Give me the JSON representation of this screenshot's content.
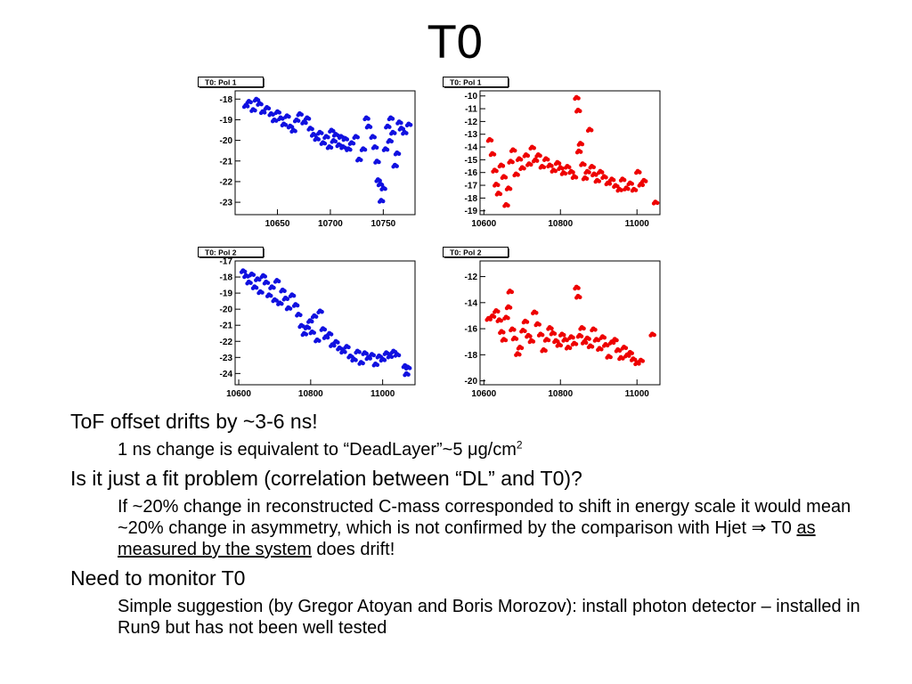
{
  "title": "T0",
  "bullets": {
    "b1": "ToF offset drifts by ~3-6 ns!",
    "b1_sub_a": "1 ns change is equivalent to “DeadLayer”~5 ",
    "b1_sub_mu": "μ",
    "b1_sub_b": "g/cm",
    "b1_sub_sup": "2",
    "b2": "Is it just a fit problem (correlation between “DL” and T0)?",
    "b2_sub_a": "If ~20% change in reconstructed C-mass corresponded to shift in energy scale it would mean ~20% change in asymmetry, which is not confirmed by the comparison with Hjet ",
    "b2_sub_arrow": "⇒",
    "b2_sub_b": " T0 ",
    "b2_sub_link": "as measured by the system",
    "b2_sub_c": " does drift!",
    "b3": "Need to monitor T0",
    "b3_sub": "Simple suggestion (by Gregor Atoyan and Boris Morozov): install photon detector – installed in Run9 but has not been well tested"
  },
  "chart_data": [
    {
      "type": "scatter",
      "title": "T0: Pol 1",
      "color": "#1010e0",
      "xlim": [
        10610,
        10780
      ],
      "ylim": [
        -23.6,
        -17.6
      ],
      "xticks": [
        10650,
        10700,
        10750
      ],
      "xtick_labels": [
        "10650",
        "10700",
        "10750"
      ],
      "yticks": [
        -18,
        -19,
        -20,
        -21,
        -22,
        -23
      ],
      "ytick_labels": [
        "-18",
        "-19",
        "-20",
        "-21",
        "-22",
        "-23"
      ],
      "points": [
        [
          10620,
          -18.3
        ],
        [
          10623,
          -18.1
        ],
        [
          10627,
          -18.5
        ],
        [
          10630,
          -18.0
        ],
        [
          10633,
          -18.2
        ],
        [
          10636,
          -18.6
        ],
        [
          10640,
          -18.4
        ],
        [
          10644,
          -18.7
        ],
        [
          10647,
          -19.0
        ],
        [
          10650,
          -18.6
        ],
        [
          10653,
          -18.9
        ],
        [
          10656,
          -19.2
        ],
        [
          10659,
          -18.8
        ],
        [
          10662,
          -19.3
        ],
        [
          10665,
          -19.5
        ],
        [
          10668,
          -19.0
        ],
        [
          10671,
          -18.7
        ],
        [
          10675,
          -19.1
        ],
        [
          10678,
          -18.9
        ],
        [
          10681,
          -19.4
        ],
        [
          10684,
          -19.7
        ],
        [
          10687,
          -19.9
        ],
        [
          10690,
          -19.6
        ],
        [
          10693,
          -20.1
        ],
        [
          10696,
          -19.8
        ],
        [
          10699,
          -20.3
        ],
        [
          10701,
          -19.5
        ],
        [
          10703,
          -20.0
        ],
        [
          10705,
          -19.7
        ],
        [
          10708,
          -20.2
        ],
        [
          10710,
          -19.8
        ],
        [
          10712,
          -20.3
        ],
        [
          10714,
          -19.9
        ],
        [
          10717,
          -20.4
        ],
        [
          10720,
          -20.1
        ],
        [
          10724,
          -19.8
        ],
        [
          10727,
          -20.9
        ],
        [
          10731,
          -20.4
        ],
        [
          10734,
          -18.9
        ],
        [
          10736,
          -19.3
        ],
        [
          10740,
          -19.8
        ],
        [
          10742,
          -20.3
        ],
        [
          10744,
          -21.0
        ],
        [
          10745,
          -21.9
        ],
        [
          10747,
          -22.1
        ],
        [
          10748,
          -22.9
        ],
        [
          10750,
          -22.3
        ],
        [
          10752,
          -20.4
        ],
        [
          10754,
          -19.3
        ],
        [
          10756,
          -20.0
        ],
        [
          10757,
          -18.9
        ],
        [
          10759,
          -19.6
        ],
        [
          10761,
          -21.2
        ],
        [
          10763,
          -20.6
        ],
        [
          10765,
          -19.1
        ],
        [
          10767,
          -19.4
        ],
        [
          10770,
          -19.6
        ],
        [
          10774,
          -19.2
        ]
      ]
    },
    {
      "type": "scatter",
      "title": "T0: Pol 1",
      "color": "#ee0000",
      "xlim": [
        10590,
        11060
      ],
      "ylim": [
        -19.3,
        -9.6
      ],
      "xticks": [
        10600,
        10800,
        11000
      ],
      "xtick_labels": [
        "10600",
        "10800",
        "11000"
      ],
      "yticks": [
        -10,
        -11,
        -12,
        -13,
        -14,
        -15,
        -16,
        -17,
        -18,
        -19
      ],
      "ytick_labels": [
        "-10",
        "-11",
        "-12",
        "-13",
        "-14",
        "-15",
        "-16",
        "-17",
        "-18",
        "-19"
      ],
      "points": [
        [
          10615,
          -13.4
        ],
        [
          10622,
          -14.5
        ],
        [
          10628,
          -15.8
        ],
        [
          10632,
          -16.9
        ],
        [
          10638,
          -17.6
        ],
        [
          10645,
          -15.4
        ],
        [
          10652,
          -16.3
        ],
        [
          10658,
          -18.5
        ],
        [
          10664,
          -17.2
        ],
        [
          10670,
          -15.1
        ],
        [
          10676,
          -14.2
        ],
        [
          10684,
          -16.1
        ],
        [
          10692,
          -14.9
        ],
        [
          10700,
          -15.6
        ],
        [
          10710,
          -14.6
        ],
        [
          10718,
          -15.3
        ],
        [
          10726,
          -14.0
        ],
        [
          10734,
          -15.0
        ],
        [
          10742,
          -14.6
        ],
        [
          10752,
          -15.5
        ],
        [
          10762,
          -14.9
        ],
        [
          10772,
          -15.4
        ],
        [
          10782,
          -15.8
        ],
        [
          10792,
          -15.2
        ],
        [
          10800,
          -15.6
        ],
        [
          10808,
          -16.0
        ],
        [
          10818,
          -15.5
        ],
        [
          10828,
          -15.9
        ],
        [
          10836,
          -16.3
        ],
        [
          10842,
          -10.1
        ],
        [
          10846,
          -11.1
        ],
        [
          10848,
          -14.3
        ],
        [
          10852,
          -13.7
        ],
        [
          10858,
          -15.3
        ],
        [
          10864,
          -16.4
        ],
        [
          10870,
          -15.9
        ],
        [
          10876,
          -12.6
        ],
        [
          10882,
          -15.5
        ],
        [
          10888,
          -16.1
        ],
        [
          10896,
          -16.6
        ],
        [
          10904,
          -15.9
        ],
        [
          10914,
          -16.3
        ],
        [
          10924,
          -16.8
        ],
        [
          10934,
          -16.5
        ],
        [
          10944,
          -17.0
        ],
        [
          10954,
          -17.3
        ],
        [
          10962,
          -16.5
        ],
        [
          10972,
          -17.2
        ],
        [
          10982,
          -16.8
        ],
        [
          10992,
          -17.3
        ],
        [
          11002,
          -15.9
        ],
        [
          11010,
          -16.9
        ],
        [
          11018,
          -16.6
        ],
        [
          11048,
          -18.3
        ]
      ]
    },
    {
      "type": "scatter",
      "title": "T0: Pol 2",
      "color": "#1010e0",
      "xlim": [
        10590,
        11090
      ],
      "ylim": [
        -24.7,
        -17.0
      ],
      "xticks": [
        10600,
        10800,
        11000
      ],
      "xtick_labels": [
        "10600",
        "10800",
        "11000"
      ],
      "yticks": [
        -17,
        -18,
        -19,
        -20,
        -21,
        -22,
        -23,
        -24
      ],
      "ytick_labels": [
        "-17",
        "-18",
        "-19",
        "-20",
        "-21",
        "-22",
        "-23",
        "-24"
      ],
      "points": [
        [
          10612,
          -17.6
        ],
        [
          10620,
          -17.9
        ],
        [
          10628,
          -18.3
        ],
        [
          10636,
          -17.8
        ],
        [
          10644,
          -18.6
        ],
        [
          10652,
          -18.1
        ],
        [
          10660,
          -18.9
        ],
        [
          10668,
          -17.9
        ],
        [
          10676,
          -18.3
        ],
        [
          10684,
          -19.1
        ],
        [
          10692,
          -18.6
        ],
        [
          10700,
          -19.4
        ],
        [
          10706,
          -18.2
        ],
        [
          10714,
          -19.6
        ],
        [
          10722,
          -18.8
        ],
        [
          10730,
          -19.3
        ],
        [
          10738,
          -19.9
        ],
        [
          10748,
          -19.1
        ],
        [
          10758,
          -19.7
        ],
        [
          10766,
          -20.3
        ],
        [
          10774,
          -21.0
        ],
        [
          10782,
          -21.5
        ],
        [
          10790,
          -21.1
        ],
        [
          10798,
          -20.7
        ],
        [
          10804,
          -21.4
        ],
        [
          10810,
          -20.4
        ],
        [
          10818,
          -21.9
        ],
        [
          10826,
          -20.1
        ],
        [
          10834,
          -21.2
        ],
        [
          10842,
          -21.7
        ],
        [
          10852,
          -21.5
        ],
        [
          10860,
          -22.2
        ],
        [
          10870,
          -22.0
        ],
        [
          10880,
          -22.4
        ],
        [
          10890,
          -22.6
        ],
        [
          10900,
          -22.3
        ],
        [
          10910,
          -22.9
        ],
        [
          10920,
          -23.1
        ],
        [
          10930,
          -22.6
        ],
        [
          10940,
          -23.3
        ],
        [
          10950,
          -22.7
        ],
        [
          10960,
          -23.0
        ],
        [
          10970,
          -22.8
        ],
        [
          10980,
          -23.4
        ],
        [
          10990,
          -22.9
        ],
        [
          11000,
          -23.1
        ],
        [
          11010,
          -22.7
        ],
        [
          11020,
          -22.9
        ],
        [
          11030,
          -22.6
        ],
        [
          11040,
          -22.8
        ],
        [
          11062,
          -23.5
        ],
        [
          11066,
          -24.0
        ],
        [
          11070,
          -23.6
        ]
      ]
    },
    {
      "type": "scatter",
      "title": "T0: Pol 2",
      "color": "#ee0000",
      "xlim": [
        10590,
        11060
      ],
      "ylim": [
        -20.3,
        -10.8
      ],
      "xticks": [
        10600,
        10800,
        11000
      ],
      "xtick_labels": [
        "10600",
        "10800",
        "11000"
      ],
      "yticks": [
        -12,
        -14,
        -16,
        -18,
        -20
      ],
      "ytick_labels": [
        "-12",
        "-14",
        "-16",
        "-18",
        "-20"
      ],
      "points": [
        [
          10612,
          -15.2
        ],
        [
          10622,
          -15.0
        ],
        [
          10632,
          -14.6
        ],
        [
          10640,
          -15.3
        ],
        [
          10646,
          -16.2
        ],
        [
          10652,
          -16.8
        ],
        [
          10658,
          -15.1
        ],
        [
          10664,
          -14.3
        ],
        [
          10668,
          -13.1
        ],
        [
          10674,
          -16.0
        ],
        [
          10680,
          -16.7
        ],
        [
          10688,
          -17.9
        ],
        [
          10694,
          -17.4
        ],
        [
          10702,
          -16.1
        ],
        [
          10708,
          -15.4
        ],
        [
          10716,
          -16.5
        ],
        [
          10724,
          -16.9
        ],
        [
          10732,
          -14.7
        ],
        [
          10740,
          -15.6
        ],
        [
          10748,
          -16.4
        ],
        [
          10756,
          -17.6
        ],
        [
          10764,
          -16.8
        ],
        [
          10772,
          -15.9
        ],
        [
          10780,
          -16.3
        ],
        [
          10788,
          -16.9
        ],
        [
          10796,
          -17.2
        ],
        [
          10804,
          -16.4
        ],
        [
          10812,
          -16.8
        ],
        [
          10820,
          -17.4
        ],
        [
          10828,
          -16.6
        ],
        [
          10836,
          -17.1
        ],
        [
          10842,
          -12.8
        ],
        [
          10846,
          -13.5
        ],
        [
          10850,
          -16.5
        ],
        [
          10856,
          -15.9
        ],
        [
          10862,
          -17.0
        ],
        [
          10870,
          -16.7
        ],
        [
          10878,
          -17.3
        ],
        [
          10886,
          -16.0
        ],
        [
          10894,
          -16.8
        ],
        [
          10902,
          -17.5
        ],
        [
          10910,
          -16.6
        ],
        [
          10918,
          -17.2
        ],
        [
          10926,
          -18.1
        ],
        [
          10934,
          -17.0
        ],
        [
          10942,
          -16.8
        ],
        [
          10950,
          -17.6
        ],
        [
          10958,
          -18.2
        ],
        [
          10966,
          -17.4
        ],
        [
          10974,
          -18.0
        ],
        [
          10982,
          -17.8
        ],
        [
          10990,
          -18.3
        ],
        [
          11000,
          -18.6
        ],
        [
          11010,
          -18.4
        ],
        [
          11040,
          -16.4
        ]
      ]
    }
  ]
}
